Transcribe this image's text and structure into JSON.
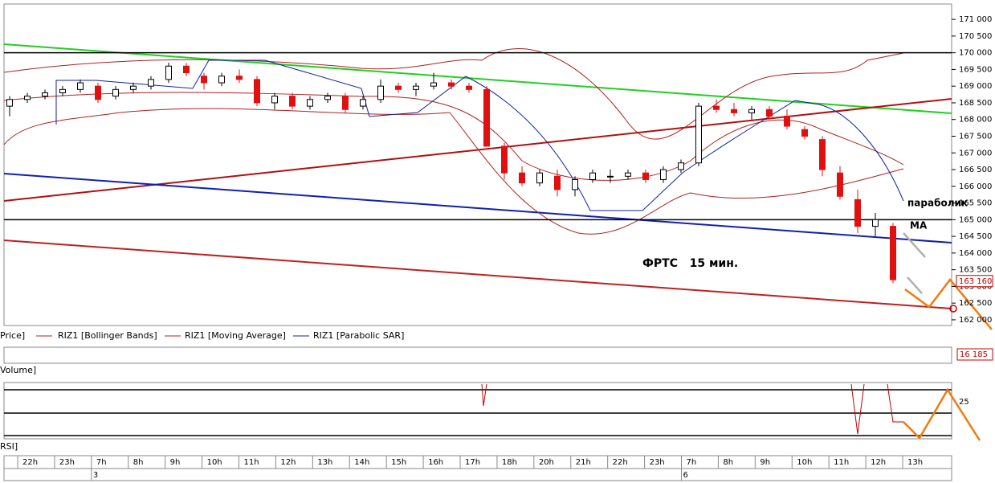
{
  "chart_data": {
    "type": "candlestick",
    "annotations": [
      "параболик",
      "MA",
      "ФРТС   15 мин."
    ],
    "legend": [
      "Price]",
      "RIZ1 [Bollinger Bands]",
      "RIZ1 [Moving Average]",
      "RIZ1 [Parabolic SAR]"
    ],
    "pane_labels": [
      "Volume]",
      "RSI]"
    ],
    "ylim": [
      161830,
      171460
    ],
    "yticks": [
      {
        "value": 171000,
        "label": "171 000"
      },
      {
        "value": 170500,
        "label": "170 500"
      },
      {
        "value": 170000,
        "label": "170 000"
      },
      {
        "value": 169500,
        "label": "169 500"
      },
      {
        "value": 169000,
        "label": "169 000"
      },
      {
        "value": 168500,
        "label": "168 500"
      },
      {
        "value": 168000,
        "label": "168 000"
      },
      {
        "value": 167500,
        "label": "167 500"
      },
      {
        "value": 167000,
        "label": "167 000"
      },
      {
        "value": 166500,
        "label": "166 500"
      },
      {
        "value": 166000,
        "label": "166 000"
      },
      {
        "value": 165500,
        "label": "165 500"
      },
      {
        "value": 165000,
        "label": "165 000"
      },
      {
        "value": 164500,
        "label": "164 500"
      },
      {
        "value": 164000,
        "label": "164 000"
      },
      {
        "value": 163500,
        "label": "163 500"
      },
      {
        "value": 163000,
        "label": "163 000"
      },
      {
        "value": 162500,
        "label": "162 500"
      },
      {
        "value": 162000,
        "label": "162 000"
      }
    ],
    "hlines": [
      170000,
      165000
    ],
    "last_price": {
      "value": 163160,
      "label": "163 160"
    },
    "last_volume": "16 185",
    "rsi_ticks": [
      25
    ],
    "time_labels": [
      "22h",
      "23h",
      "7h",
      "8h",
      "9h",
      "10h",
      "11h",
      "12h",
      "13h",
      "14h",
      "15h",
      "16h",
      "17h",
      "18h",
      "20h",
      "21h",
      "22h",
      "23h",
      "7h",
      "8h",
      "9h",
      "10h",
      "11h",
      "12h",
      "13h"
    ],
    "date_labels": [
      "3",
      "6"
    ],
    "ohlc": [
      [
        168400,
        168700,
        168100,
        168600
      ],
      [
        168600,
        168800,
        168500,
        168700
      ],
      [
        168700,
        168900,
        168600,
        168800
      ],
      [
        168800,
        169000,
        168700,
        168900
      ],
      [
        168900,
        169200,
        168800,
        169100
      ],
      [
        169000,
        169100,
        168500,
        168600
      ],
      [
        168700,
        169000,
        168600,
        168900
      ],
      [
        168900,
        169100,
        168800,
        169000
      ],
      [
        169000,
        169300,
        168900,
        169200
      ],
      [
        169200,
        169700,
        169100,
        169600
      ],
      [
        169600,
        169700,
        169300,
        169400
      ],
      [
        169300,
        169400,
        168900,
        169100
      ],
      [
        169100,
        169400,
        169000,
        169300
      ],
      [
        169300,
        169500,
        169100,
        169200
      ],
      [
        169200,
        169300,
        168400,
        168500
      ],
      [
        168500,
        168800,
        168300,
        168700
      ],
      [
        168700,
        168800,
        168300,
        168400
      ],
      [
        168400,
        168700,
        168300,
        168600
      ],
      [
        168600,
        168800,
        168500,
        168700
      ],
      [
        168700,
        168800,
        168200,
        168300
      ],
      [
        168400,
        168700,
        168300,
        168600
      ],
      [
        168600,
        169200,
        168500,
        169000
      ],
      [
        169000,
        169100,
        168800,
        168900
      ],
      [
        168900,
        169100,
        168700,
        169000
      ],
      [
        169000,
        169400,
        168900,
        169100
      ],
      [
        169100,
        169200,
        168900,
        169000
      ],
      [
        169000,
        169100,
        168800,
        168900
      ],
      [
        168900,
        169000,
        167200,
        167200
      ],
      [
        167200,
        167300,
        166200,
        166400
      ],
      [
        166400,
        166600,
        166000,
        166100
      ],
      [
        166100,
        166500,
        166000,
        166400
      ],
      [
        166300,
        166500,
        165700,
        165900
      ],
      [
        165900,
        166300,
        165700,
        166200
      ],
      [
        166200,
        166500,
        166100,
        166400
      ],
      [
        166300,
        166500,
        166100,
        166300
      ],
      [
        166300,
        166500,
        166200,
        166400
      ],
      [
        166400,
        166500,
        166100,
        166200
      ],
      [
        166200,
        166600,
        166100,
        166500
      ],
      [
        166500,
        166800,
        166400,
        166700
      ],
      [
        166700,
        168500,
        166600,
        168400
      ],
      [
        168400,
        168600,
        168200,
        168300
      ],
      [
        168300,
        168500,
        168100,
        168200
      ],
      [
        168200,
        168400,
        168000,
        168300
      ],
      [
        168300,
        168400,
        168000,
        168100
      ],
      [
        168100,
        168300,
        167700,
        167800
      ],
      [
        167700,
        167800,
        167400,
        167500
      ],
      [
        167400,
        167500,
        166300,
        166500
      ],
      [
        166400,
        166600,
        165600,
        165700
      ],
      [
        165600,
        165900,
        164600,
        164800
      ],
      [
        164800,
        165200,
        164500,
        165000
      ],
      [
        164800,
        164900,
        163100,
        163200
      ]
    ]
  }
}
